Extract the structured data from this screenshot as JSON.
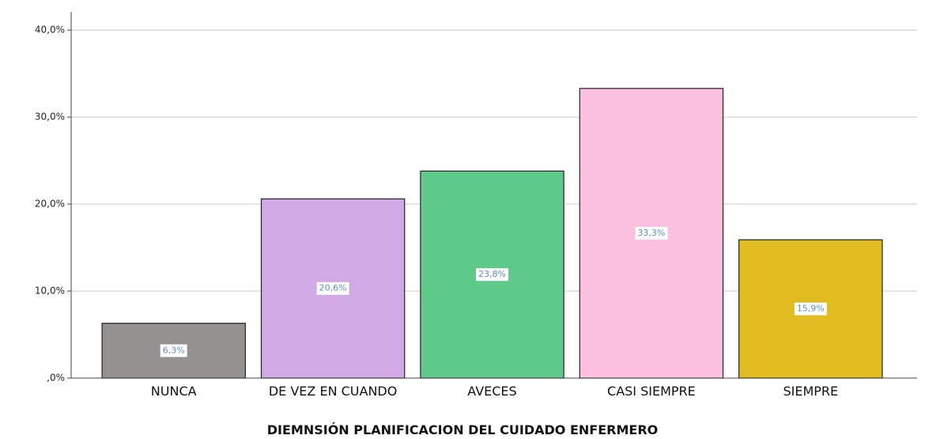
{
  "chart_data": {
    "type": "bar",
    "x_label": "DIEMNSIÓN PLANIFICACION DEL CUIDADO ENFERMERO",
    "categories": [
      "NUNCA",
      "DE VEZ EN CUANDO",
      "AVECES",
      "CASI SIEMPRE",
      "SIEMPRE"
    ],
    "values": [
      6.3,
      20.6,
      23.8,
      33.3,
      15.9
    ],
    "value_labels": [
      "6,3%",
      "20,6%",
      "23,8%",
      "33,3%",
      "15,9%"
    ],
    "colors": [
      "#949191",
      "#d0a9e5",
      "#5ecb8a",
      "#fcc0e0",
      "#e1bc20"
    ],
    "ylim": [
      0,
      42.1
    ],
    "yticks": [
      {
        "value": 0,
        "label": ",0%"
      },
      {
        "value": 10,
        "label": "10,0%"
      },
      {
        "value": 20,
        "label": "20,0%"
      },
      {
        "value": 30,
        "label": "30,0%"
      },
      {
        "value": 40,
        "label": "40,0%"
      }
    ],
    "grid": true
  }
}
